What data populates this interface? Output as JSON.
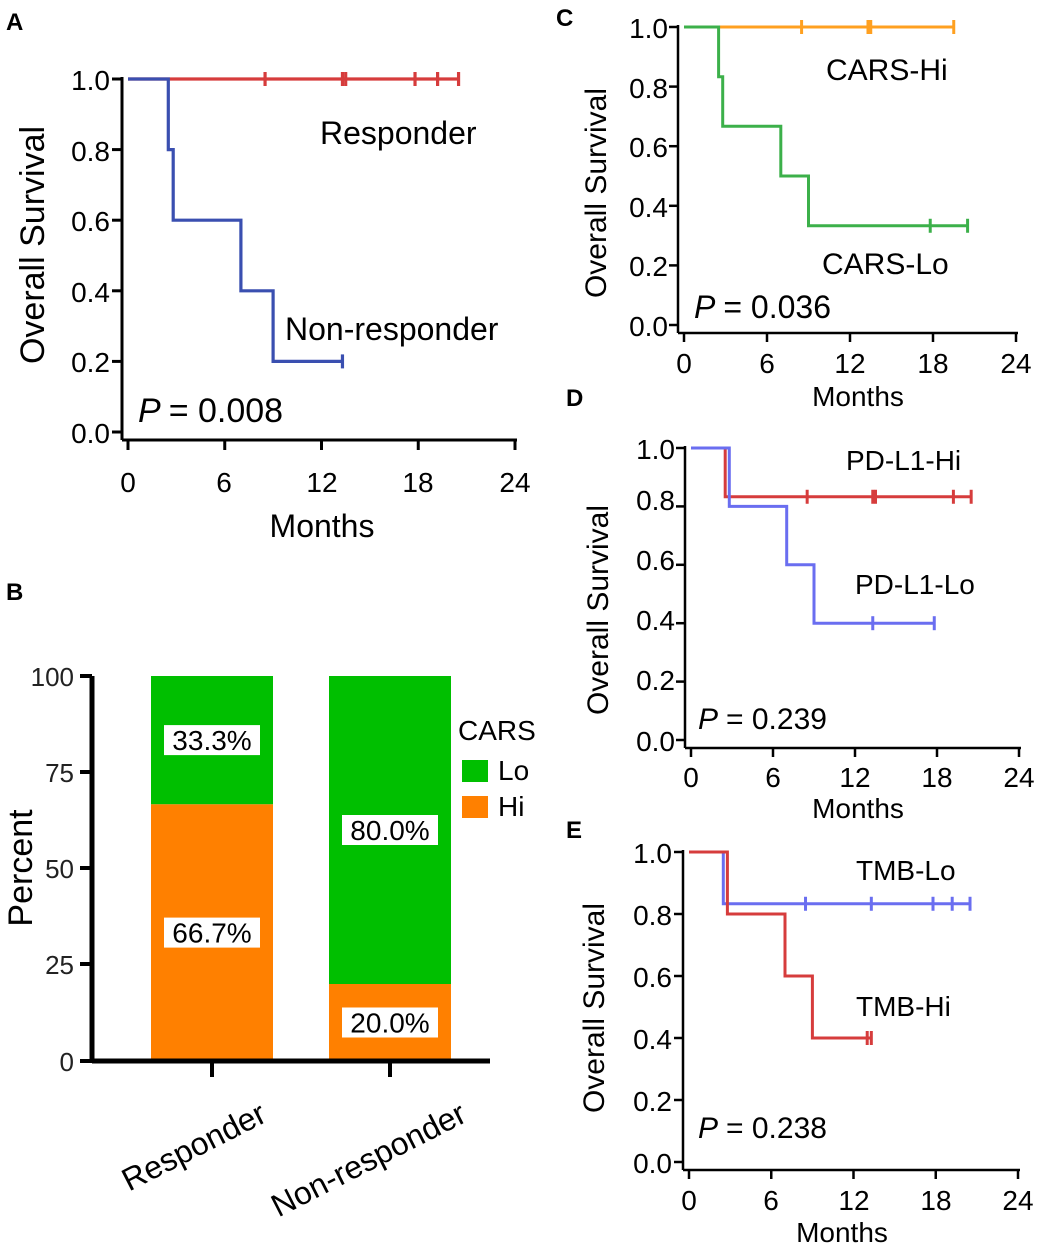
{
  "chart_data": [
    {
      "panel": "A",
      "type": "line",
      "subtype": "kaplan-meier",
      "xlabel": "Months",
      "ylabel": "Overall Survival",
      "xticks": [
        "0",
        "6",
        "12",
        "18",
        "24"
      ],
      "yticks": [
        "0.0",
        "0.2",
        "0.4",
        "0.6",
        "0.8",
        "1.0"
      ],
      "xlim": [
        0,
        24
      ],
      "ylim": [
        0,
        1
      ],
      "pvalue_label": "P",
      "pvalue_text": "= 0.008",
      "series": [
        {
          "name": "Responder",
          "color": "#d63c3c",
          "steps": [
            [
              0,
              1.0
            ],
            [
              20.5,
              1.0
            ]
          ],
          "censors": [
            [
              8.5,
              1.0
            ],
            [
              13.3,
              1.0
            ],
            [
              13.5,
              1.0
            ],
            [
              17.8,
              1.0
            ],
            [
              19.2,
              1.0
            ],
            [
              20.5,
              1.0
            ]
          ]
        },
        {
          "name": "Non-responder",
          "color": "#3a4fb0",
          "steps": [
            [
              0,
              1.0
            ],
            [
              2.5,
              1.0
            ],
            [
              2.5,
              0.8
            ],
            [
              2.8,
              0.8
            ],
            [
              2.8,
              0.6
            ],
            [
              7.0,
              0.6
            ],
            [
              7.0,
              0.4
            ],
            [
              9.0,
              0.4
            ],
            [
              9.0,
              0.2
            ],
            [
              13.3,
              0.2
            ]
          ],
          "censors": [
            [
              13.3,
              0.2
            ]
          ]
        }
      ]
    },
    {
      "panel": "B",
      "type": "bar",
      "subtype": "stacked-percent",
      "ylabel": "Percent",
      "categories": [
        "Responder",
        "Non-responder"
      ],
      "yticks": [
        "0",
        "25",
        "50",
        "75",
        "100"
      ],
      "ylim": [
        0,
        100
      ],
      "legend_title": "CARS",
      "series": [
        {
          "name": "Hi",
          "color": "#ff8000",
          "values": [
            66.7,
            20.0
          ],
          "labels": [
            "66.7%",
            "20.0%"
          ]
        },
        {
          "name": "Lo",
          "color": "#00bf00",
          "values": [
            33.3,
            80.0
          ],
          "labels": [
            "33.3%",
            "80.0%"
          ]
        }
      ]
    },
    {
      "panel": "C",
      "type": "line",
      "subtype": "kaplan-meier",
      "xlabel": "Months",
      "ylabel": "Overall Survival",
      "xticks": [
        "0",
        "6",
        "12",
        "18",
        "24"
      ],
      "yticks": [
        "0.0",
        "0.2",
        "0.4",
        "0.6",
        "0.8",
        "1.0"
      ],
      "xlim": [
        0,
        24
      ],
      "ylim": [
        0,
        1
      ],
      "pvalue_label": "P",
      "pvalue_text": "= 0.036",
      "series": [
        {
          "name": "CARS-Hi",
          "color": "#ffa020",
          "steps": [
            [
              0,
              1.0
            ],
            [
              19.5,
              1.0
            ]
          ],
          "censors": [
            [
              8.5,
              1.0
            ],
            [
              13.3,
              1.0
            ],
            [
              13.5,
              1.0
            ],
            [
              19.5,
              1.0
            ]
          ]
        },
        {
          "name": "CARS-Lo",
          "color": "#3cb04a",
          "steps": [
            [
              0,
              1.0
            ],
            [
              2.5,
              1.0
            ],
            [
              2.5,
              0.833
            ],
            [
              2.8,
              0.833
            ],
            [
              2.8,
              0.667
            ],
            [
              7.0,
              0.667
            ],
            [
              7.0,
              0.5
            ],
            [
              9.0,
              0.5
            ],
            [
              9.0,
              0.333
            ],
            [
              20.5,
              0.333
            ]
          ],
          "censors": [
            [
              17.8,
              0.333
            ],
            [
              20.5,
              0.333
            ]
          ]
        }
      ]
    },
    {
      "panel": "D",
      "type": "line",
      "subtype": "kaplan-meier",
      "xlabel": "Months",
      "ylabel": "Overall Survival",
      "xticks": [
        "0",
        "6",
        "12",
        "18",
        "24"
      ],
      "yticks": [
        "0.0",
        "0.2",
        "0.4",
        "0.6",
        "0.8",
        "1.0"
      ],
      "xlim": [
        0,
        24
      ],
      "ylim": [
        0,
        1
      ],
      "pvalue_label": "P",
      "pvalue_text": "= 0.239",
      "series": [
        {
          "name": "PD-L1-Hi",
          "color": "#d63c3c",
          "steps": [
            [
              0,
              1.0
            ],
            [
              2.5,
              1.0
            ],
            [
              2.5,
              0.833
            ],
            [
              20.5,
              0.833
            ]
          ],
          "censors": [
            [
              8.5,
              0.833
            ],
            [
              13.3,
              0.833
            ],
            [
              13.5,
              0.833
            ],
            [
              19.2,
              0.833
            ],
            [
              20.5,
              0.833
            ]
          ]
        },
        {
          "name": "PD-L1-Lo",
          "color": "#6a6ef0",
          "steps": [
            [
              0,
              1.0
            ],
            [
              2.8,
              1.0
            ],
            [
              2.8,
              0.8
            ],
            [
              7.0,
              0.8
            ],
            [
              7.0,
              0.6
            ],
            [
              9.0,
              0.6
            ],
            [
              9.0,
              0.4
            ],
            [
              17.8,
              0.4
            ]
          ],
          "censors": [
            [
              13.3,
              0.4
            ],
            [
              17.8,
              0.4
            ]
          ]
        }
      ]
    },
    {
      "panel": "E",
      "type": "line",
      "subtype": "kaplan-meier",
      "xlabel": "Months",
      "ylabel": "Overall Survival",
      "xticks": [
        "0",
        "6",
        "12",
        "18",
        "24"
      ],
      "yticks": [
        "0.0",
        "0.2",
        "0.4",
        "0.6",
        "0.8",
        "1.0"
      ],
      "xlim": [
        0,
        24
      ],
      "ylim": [
        0,
        1
      ],
      "pvalue_label": "P",
      "pvalue_text": "= 0.238",
      "series": [
        {
          "name": "TMB-Lo",
          "color": "#6a6ef0",
          "steps": [
            [
              0,
              1.0
            ],
            [
              2.5,
              1.0
            ],
            [
              2.5,
              0.833
            ],
            [
              20.5,
              0.833
            ]
          ],
          "censors": [
            [
              8.5,
              0.833
            ],
            [
              13.3,
              0.833
            ],
            [
              17.8,
              0.833
            ],
            [
              19.2,
              0.833
            ],
            [
              20.5,
              0.833
            ]
          ]
        },
        {
          "name": "TMB-Hi",
          "color": "#d63c3c",
          "steps": [
            [
              0,
              1.0
            ],
            [
              2.8,
              1.0
            ],
            [
              2.8,
              0.8
            ],
            [
              7.0,
              0.8
            ],
            [
              7.0,
              0.6
            ],
            [
              9.0,
              0.6
            ],
            [
              9.0,
              0.4
            ],
            [
              13.3,
              0.4
            ]
          ],
          "censors": [
            [
              13.0,
              0.4
            ],
            [
              13.3,
              0.4
            ]
          ]
        }
      ]
    }
  ]
}
